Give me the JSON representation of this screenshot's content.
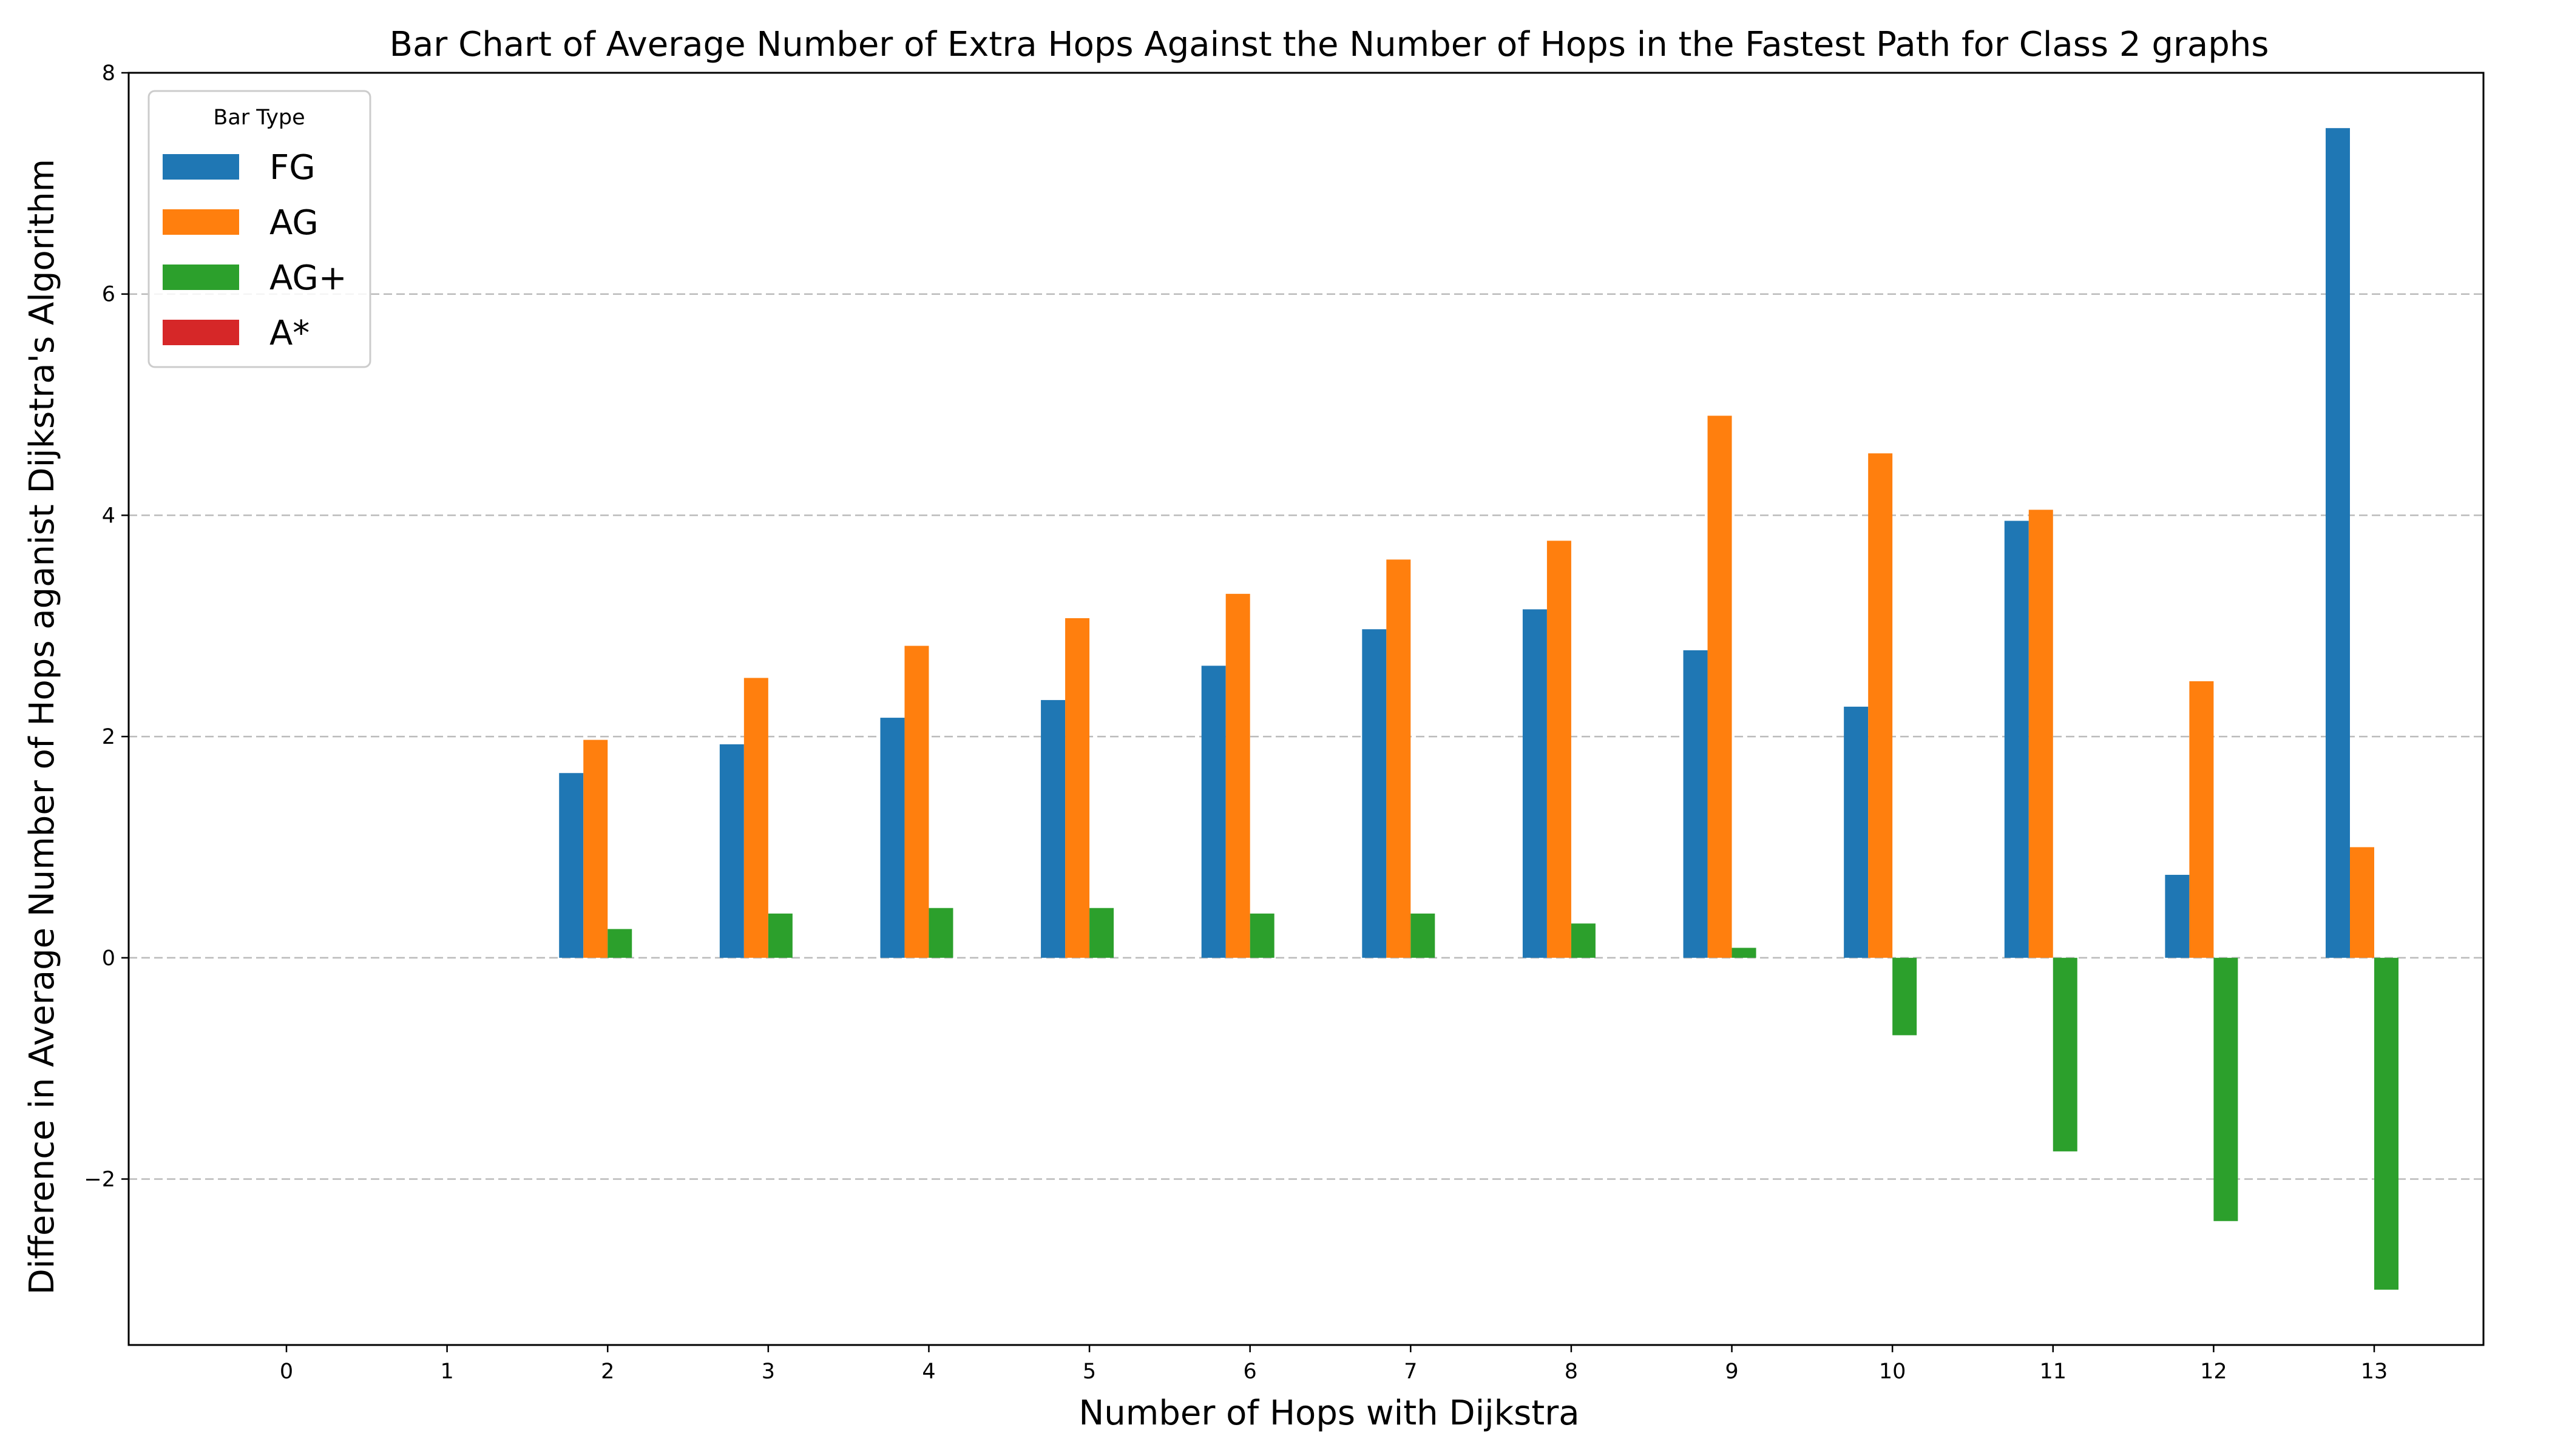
{
  "chart_data": {
    "type": "bar",
    "title": "Bar Chart of Average Number of Extra Hops Against the Number of Hops in the Fastest Path for Class 2 graphs",
    "xlabel": "Number of Hops with Dijkstra",
    "ylabel": "Difference in Average Number of Hops aganist Dijkstra's Algorithm",
    "categories": [
      "0",
      "1",
      "2",
      "3",
      "4",
      "5",
      "6",
      "7",
      "8",
      "9",
      "10",
      "11",
      "12",
      "13"
    ],
    "ylim": [
      -3.5,
      8
    ],
    "yticks": [
      -2,
      0,
      2,
      4,
      6,
      8
    ],
    "ytick_labels": [
      "−2",
      "0",
      "2",
      "4",
      "6",
      "8"
    ],
    "grid": "y-dashed",
    "legend": {
      "title": "Bar Type",
      "placement": "top-left"
    },
    "series": [
      {
        "name": "FG",
        "color": "#1f77b4",
        "values": [
          null,
          null,
          1.67,
          1.93,
          2.17,
          2.33,
          2.64,
          2.97,
          3.15,
          2.78,
          2.27,
          3.95,
          0.75,
          7.5
        ]
      },
      {
        "name": "AG",
        "color": "#ff7f0e",
        "values": [
          null,
          null,
          1.97,
          2.53,
          2.82,
          3.07,
          3.29,
          3.6,
          3.77,
          4.9,
          4.56,
          4.05,
          2.5,
          1.0
        ]
      },
      {
        "name": "AG+",
        "color": "#2ca02c",
        "values": [
          null,
          null,
          0.26,
          0.4,
          0.45,
          0.45,
          0.4,
          0.4,
          0.31,
          0.09,
          -0.7,
          -1.75,
          -2.38,
          -3.0
        ]
      },
      {
        "name": "A*",
        "color": "#d62728",
        "values": [
          null,
          null,
          0,
          0,
          0,
          0,
          0,
          0,
          0,
          0,
          0,
          0,
          0,
          0
        ]
      }
    ]
  }
}
